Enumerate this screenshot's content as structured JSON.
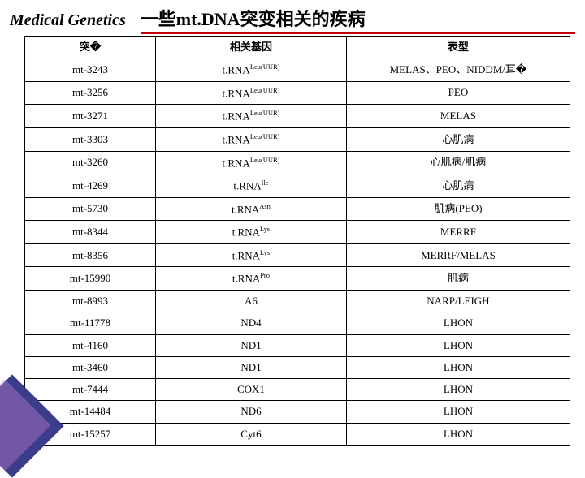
{
  "header": {
    "brand": "Medical Genetics",
    "title": "一些mt.DNA突变相关的疾病"
  },
  "table": {
    "columns": [
      "突�",
      "相关基因",
      "表型"
    ],
    "rows": [
      {
        "mut": "mt-3243",
        "gene_base": "t.RNA",
        "gene_sup": "Leu(UUR)",
        "pheno": "MELAS、PEO、NIDDM/耳�"
      },
      {
        "mut": "mt-3256",
        "gene_base": "t.RNA",
        "gene_sup": "Leu(UUR)",
        "pheno": "PEO"
      },
      {
        "mut": "mt-3271",
        "gene_base": "t.RNA",
        "gene_sup": "Leu(UUR)",
        "pheno": "MELAS"
      },
      {
        "mut": "mt-3303",
        "gene_base": "t.RNA",
        "gene_sup": "Leu(UUR)",
        "pheno": "心肌病"
      },
      {
        "mut": "mt-3260",
        "gene_base": "t.RNA",
        "gene_sup": "Leu(UUR)",
        "pheno": "心肌病/肌病"
      },
      {
        "mut": "mt-4269",
        "gene_base": "t.RNA",
        "gene_sup": "Ile",
        "pheno": "心肌病"
      },
      {
        "mut": "mt-5730",
        "gene_base": "t.RNA",
        "gene_sup": "Asn",
        "pheno": "肌病(PEO)"
      },
      {
        "mut": "mt-8344",
        "gene_base": "t.RNA",
        "gene_sup": "Lys",
        "pheno": "MERRF"
      },
      {
        "mut": "mt-8356",
        "gene_base": "t.RNA",
        "gene_sup": "Lys",
        "pheno": "MERRF/MELAS"
      },
      {
        "mut": "mt-15990",
        "gene_base": "t.RNA",
        "gene_sup": "Pro",
        "pheno": "肌病"
      },
      {
        "mut": "mt-8993",
        "gene_base": "A6",
        "gene_sup": "",
        "pheno": "NARP/LEIGH"
      },
      {
        "mut": "mt-11778",
        "gene_base": "ND4",
        "gene_sup": "",
        "pheno": "LHON"
      },
      {
        "mut": "mt-4160",
        "gene_base": "ND1",
        "gene_sup": "",
        "pheno": "LHON"
      },
      {
        "mut": "mt-3460",
        "gene_base": "ND1",
        "gene_sup": "",
        "pheno": "LHON"
      },
      {
        "mut": "mt-7444",
        "gene_base": "COX1",
        "gene_sup": "",
        "pheno": "LHON"
      },
      {
        "mut": "mt-14484",
        "gene_base": "ND6",
        "gene_sup": "",
        "pheno": "LHON"
      },
      {
        "mut": "mt-15257",
        "gene_base": "Cyt6",
        "gene_sup": "",
        "pheno": "LHON"
      }
    ]
  }
}
